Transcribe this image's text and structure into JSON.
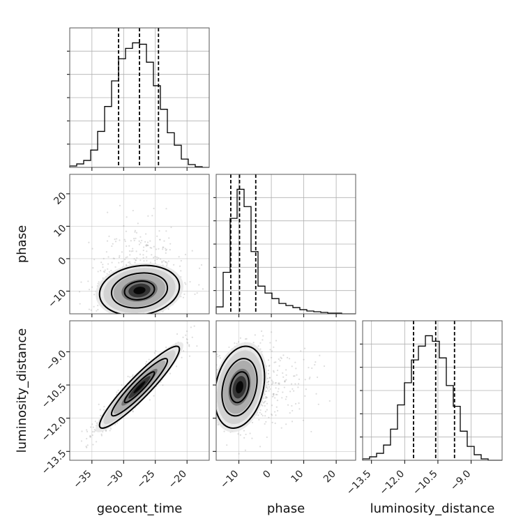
{
  "chart_data": {
    "type": "corner",
    "parameters": [
      "geocent_time",
      "phase",
      "luminosity_distance"
    ],
    "axis_labels": {
      "geocent_time": "geocent_time",
      "phase": "phase",
      "luminosity_distance": "luminosity_distance"
    },
    "ranges": {
      "geocent_time": [
        -38.5,
        -16.5
      ],
      "phase": [
        -17,
        26
      ],
      "luminosity_distance": [
        -13.9,
        -7.6
      ]
    },
    "ticks": {
      "geocent_time": [
        -35,
        -30,
        -25,
        -20
      ],
      "phase": [
        -10,
        0,
        10,
        20
      ],
      "luminosity_distance": [
        -13.5,
        -12.0,
        -10.5,
        -9.0
      ]
    },
    "tick_labels": {
      "geocent_time": [
        "−35",
        "−30",
        "−25",
        "−20"
      ],
      "phase": [
        "−10",
        "0",
        "10",
        "20"
      ],
      "luminosity_distance": [
        "−13.5",
        "−12.0",
        "−10.5",
        "−9.0"
      ]
    },
    "histograms": {
      "geocent_time": {
        "edges": [
          -38.5,
          -37.4,
          -36.3,
          -35.2,
          -34.1,
          -33.0,
          -31.9,
          -30.8,
          -29.7,
          -28.6,
          -27.5,
          -26.4,
          -25.3,
          -24.2,
          -23.1,
          -22.0,
          -20.9,
          -19.8,
          -18.7,
          -17.6,
          -16.5
        ],
        "counts": [
          2,
          5,
          10,
          25,
          52,
          88,
          125,
          157,
          172,
          180,
          178,
          152,
          118,
          84,
          50,
          32,
          12,
          4,
          1,
          0
        ],
        "quantiles": [
          -30.8,
          -27.5,
          -24.5
        ]
      },
      "phase": {
        "edges": [
          -17,
          -14.85,
          -12.7,
          -10.55,
          -8.4,
          -6.25,
          -4.1,
          -1.95,
          0.2,
          2.35,
          4.5,
          6.65,
          8.8,
          10.95,
          13.1,
          15.25,
          17.4,
          19.55,
          21.7,
          23.85,
          26
        ],
        "counts": [
          10,
          60,
          138,
          180,
          155,
          90,
          40,
          30,
          22,
          15,
          12,
          9,
          6,
          4,
          3,
          2,
          1,
          1,
          0,
          0
        ],
        "quantiles": [
          -12.5,
          -9.8,
          -4.8
        ]
      },
      "luminosity_distance": {
        "edges": [
          -13.9,
          -13.585,
          -13.27,
          -12.955,
          -12.64,
          -12.325,
          -12.01,
          -11.695,
          -11.38,
          -11.065,
          -10.75,
          -10.435,
          -10.12,
          -9.805,
          -9.49,
          -9.175,
          -8.86,
          -8.545,
          -8.23,
          -7.915,
          -7.6
        ],
        "counts": [
          2,
          5,
          10,
          22,
          45,
          80,
          112,
          145,
          165,
          180,
          172,
          148,
          108,
          78,
          42,
          20,
          8,
          2,
          0,
          0
        ],
        "quantiles": [
          -11.6,
          -10.6,
          -9.75
        ]
      }
    },
    "correlations": {
      "phase_vs_geocent_time": 0.15,
      "luminosity_distance_vs_geocent_time": 0.93,
      "luminosity_distance_vs_phase": 0.25
    },
    "grid": true,
    "colors": {
      "line": "#000000",
      "scatter": "#9e9e9e",
      "grid": "#b0b0b0",
      "density_light": "#cfcfcf",
      "density_dark": "#000000"
    }
  }
}
